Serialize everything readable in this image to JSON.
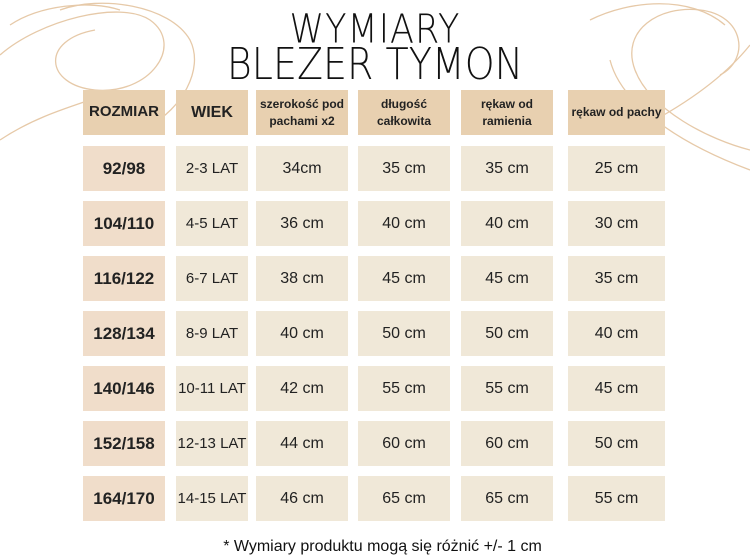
{
  "title": {
    "line1": "WYMIARY",
    "line2": "BLEZER TYMON"
  },
  "headers": [
    "ROZMIAR",
    "WIEK",
    "szerokość pod pachami x2",
    "długość całkowita",
    "rękaw od ramienia",
    "rękaw od pachy"
  ],
  "rows": [
    [
      "92/98",
      "2-3 LAT",
      "34cm",
      "35 cm",
      "35 cm",
      "25 cm"
    ],
    [
      "104/110",
      "4-5 LAT",
      "36 cm",
      "40 cm",
      "40 cm",
      "30 cm"
    ],
    [
      "116/122",
      "6-7 LAT",
      "38 cm",
      "45 cm",
      "45 cm",
      "35 cm"
    ],
    [
      "128/134",
      "8-9 LAT",
      "40 cm",
      "50 cm",
      "50 cm",
      "40 cm"
    ],
    [
      "140/146",
      "10-11 LAT",
      "42 cm",
      "55 cm",
      "55 cm",
      "45 cm"
    ],
    [
      "152/158",
      "12-13 LAT",
      "44 cm",
      "60 cm",
      "60 cm",
      "50 cm"
    ],
    [
      "164/170",
      "14-15 LAT",
      "46 cm",
      "65 cm",
      "65 cm",
      "55 cm"
    ]
  ],
  "footnote": "* Wymiary produktu mogą się różnić +/- 1 cm",
  "colors": {
    "header": "#e8d0b0",
    "size_cell": "#f0ddca",
    "value_cell": "#f0e8d8",
    "swirl": "#e6c9a8"
  }
}
